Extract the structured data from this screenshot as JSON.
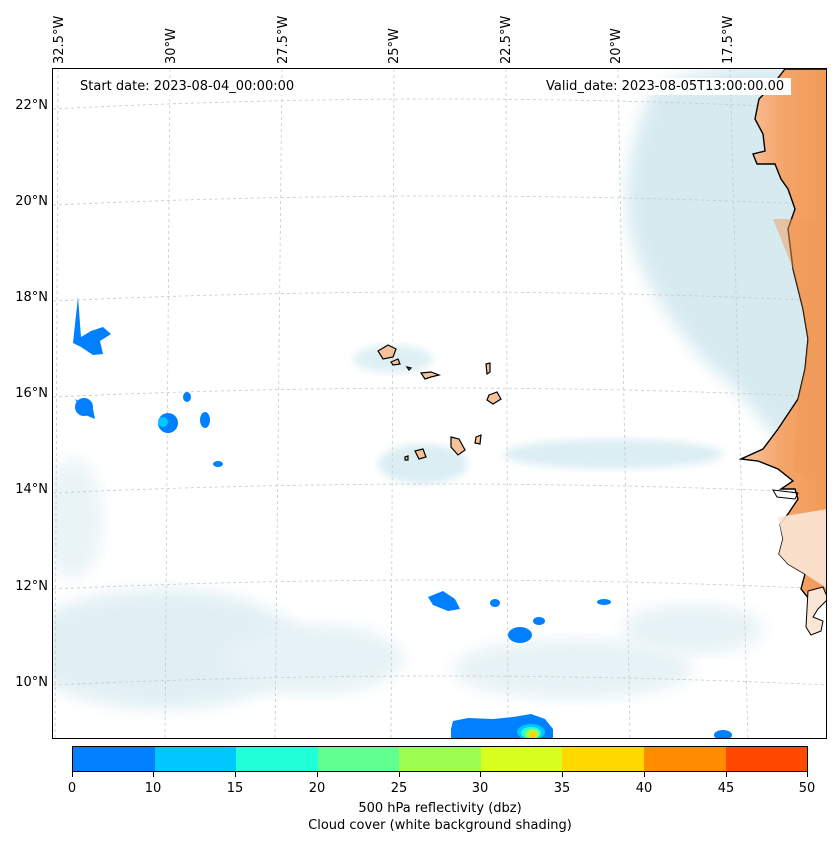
{
  "map": {
    "start_date": "Start date: 2023-08-04_00:00:00",
    "valid_date": "Valid_date: 2023-08-05T13:00:00.00",
    "lon_labels": [
      "32.5°W",
      "30°W",
      "27.5°W",
      "25°W",
      "22.5°W",
      "20°W",
      "17.5°W"
    ],
    "lat_labels": [
      "22°N",
      "20°N",
      "18°N",
      "16°N",
      "14°N",
      "12°N",
      "10°N"
    ],
    "land_color": "#f4a468",
    "cloud_color": "#cfe7ee",
    "reflectivity_low_color": "#0080ff"
  },
  "colorbar": {
    "ticks": [
      "0",
      "10",
      "15",
      "20",
      "25",
      "30",
      "35",
      "40",
      "45",
      "50"
    ],
    "colors": [
      "#0080ff",
      "#00c8ff",
      "#20ffd8",
      "#60ff90",
      "#9cff50",
      "#d8ff20",
      "#ffd800",
      "#ff8c00",
      "#ff4800"
    ],
    "label_line1": "500 hPa reflectivity (dbz)",
    "label_line2": "Cloud cover (white background shading)"
  }
}
